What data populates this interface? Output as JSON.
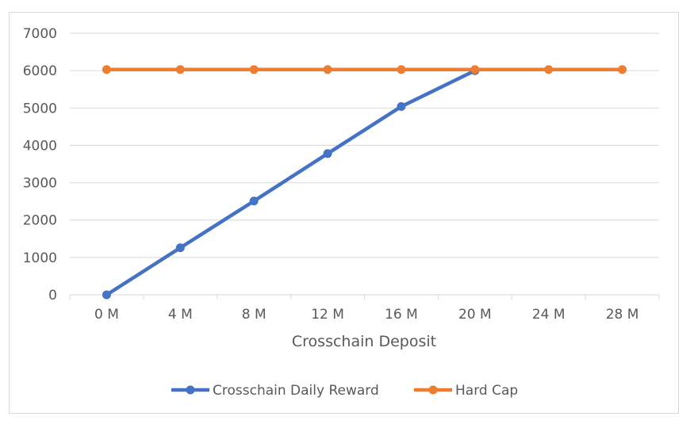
{
  "chart_data": {
    "type": "line",
    "title": "",
    "xlabel": "Crosschain Deposit",
    "ylabel": "",
    "categories": [
      "0 M",
      "4 M",
      "8 M",
      "12 M",
      "16 M",
      "20 M",
      "24 M",
      "28 M"
    ],
    "ylim": [
      0,
      7000
    ],
    "yticks": [
      "0",
      "1000",
      "2000",
      "3000",
      "4000",
      "5000",
      "6000",
      "7000"
    ],
    "grid": true,
    "legend_position": "bottom",
    "series": [
      {
        "name": "Crosschain Daily Reward",
        "color": "#4472C4",
        "values": [
          0,
          1260,
          2510,
          3780,
          5040,
          6000,
          null,
          null
        ]
      },
      {
        "name": "Hard Cap",
        "color": "#ED7D31",
        "values": [
          6030,
          6030,
          6030,
          6030,
          6030,
          6030,
          6030,
          6030
        ]
      }
    ]
  }
}
